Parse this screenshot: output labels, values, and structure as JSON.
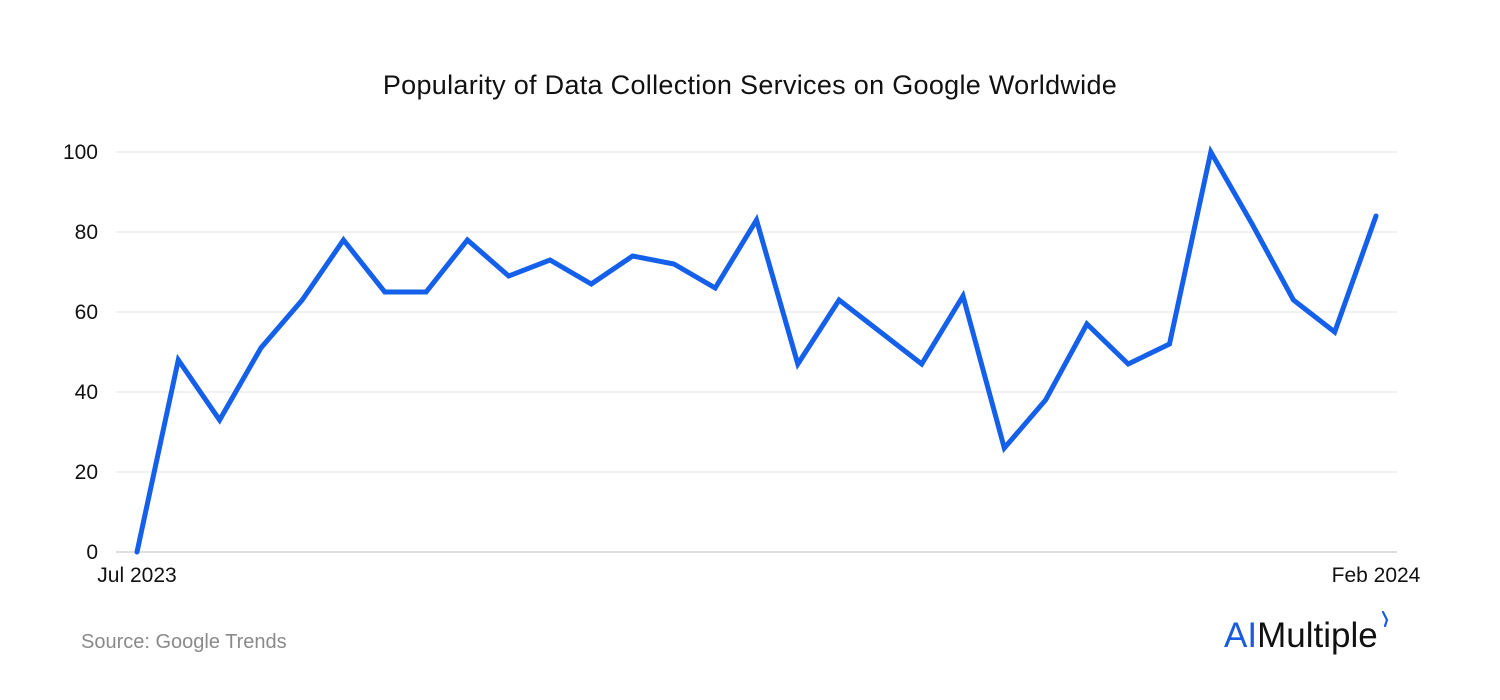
{
  "chart_data": {
    "type": "line",
    "title": "Popularity of Data Collection Services on Google Worldwide",
    "xlabel": "",
    "ylabel": "",
    "x_tick_labels": [
      "Jul 2023",
      "Feb 2024"
    ],
    "y_ticks": [
      0,
      20,
      40,
      60,
      80,
      100
    ],
    "ylim": [
      0,
      100
    ],
    "grid": true,
    "series": [
      {
        "color": "#1460ea",
        "values": [
          0,
          48,
          33,
          51,
          63,
          78,
          65,
          65,
          78,
          69,
          73,
          67,
          74,
          72,
          66,
          83,
          47,
          63,
          55,
          47,
          64,
          26,
          38,
          57,
          47,
          52,
          100,
          82,
          63,
          55,
          84
        ]
      }
    ]
  },
  "footer": {
    "source": "Source: Google Trends"
  },
  "brand": {
    "part_a": "AI",
    "part_b": "Multiple",
    "accent_color": "#1a5ce0"
  }
}
